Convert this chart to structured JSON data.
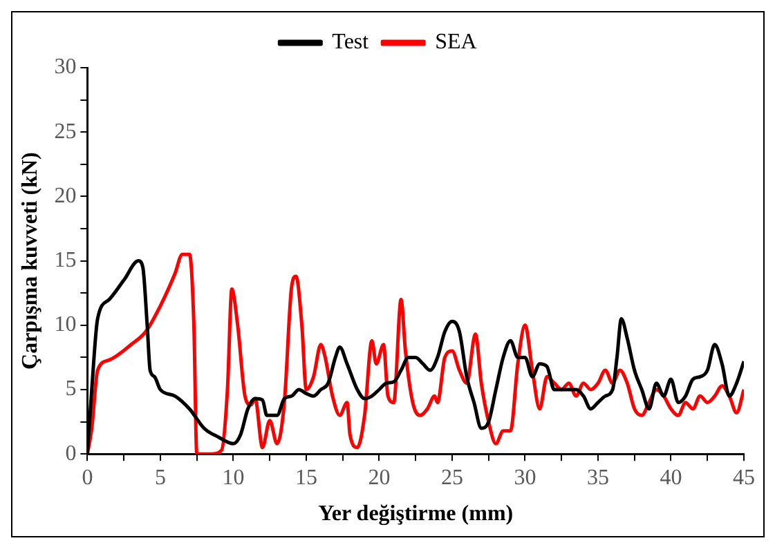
{
  "chart_data": {
    "type": "line",
    "xlabel": "Yer değiştirme (mm)",
    "ylabel": "Çarpışma kuvveti (kN)",
    "legend": "top",
    "grid": false,
    "marker": "none",
    "line_style": "solid",
    "xlim": [
      0,
      45
    ],
    "xticks": [
      0,
      {
        "value": 2.5,
        "label": null
      },
      5,
      {
        "value": 7.5,
        "label": null
      },
      10,
      {
        "value": 12.5,
        "label": null
      },
      15,
      {
        "value": 17.5,
        "label": null
      },
      20,
      {
        "value": 22.5,
        "label": null
      },
      25,
      {
        "value": 27.5,
        "label": null
      },
      30,
      {
        "value": 32.5,
        "label": null
      },
      35,
      {
        "value": 37.5,
        "label": null
      },
      40,
      {
        "value": 42.5,
        "label": null
      },
      45
    ],
    "ylim": [
      0,
      30
    ],
    "yticks": [
      0,
      {
        "value": 2.5,
        "label": null
      },
      5,
      {
        "value": 7.5,
        "label": null
      },
      10,
      {
        "value": 12.5,
        "label": null
      },
      15,
      {
        "value": 17.5,
        "label": null
      },
      20,
      {
        "value": 22.5,
        "label": null
      },
      25,
      {
        "value": 27.5,
        "label": null
      },
      30
    ],
    "series": [
      {
        "name": "Test",
        "color": "#000000",
        "x": [
          0,
          0.3,
          0.7,
          1.5,
          2.5,
          3.5,
          3.8,
          4.1,
          4.3,
          4.6,
          5,
          6,
          7,
          8,
          9,
          10,
          10.5,
          11,
          11.5,
          12,
          12.3,
          13,
          13.5,
          14,
          14.5,
          15,
          15.5,
          16,
          16.5,
          17,
          17.3,
          17.8,
          18.5,
          19,
          19.5,
          20,
          20.5,
          21,
          21.5,
          22,
          22.5,
          23,
          23.5,
          24,
          24.5,
          25,
          25.5,
          26,
          26.5,
          27,
          27.5,
          28,
          28.5,
          29,
          29.5,
          30,
          30.5,
          31,
          31.5,
          32,
          33,
          33.5,
          34,
          34.5,
          35,
          35.5,
          36,
          36.3,
          36.6,
          37,
          37.5,
          38,
          38.5,
          39,
          39.5,
          40,
          40.5,
          41,
          41.5,
          42,
          42.5,
          43,
          43.5,
          44,
          44.5,
          45
        ],
        "values": [
          0,
          5,
          10.5,
          12,
          13.5,
          15,
          14.5,
          10,
          6.5,
          6,
          5,
          4.5,
          3.5,
          2,
          1.3,
          0.8,
          1.5,
          3.5,
          4.3,
          4.2,
          3,
          3,
          4.3,
          4.5,
          5,
          4.7,
          4.5,
          5,
          5.5,
          7.5,
          8.3,
          7,
          5,
          4.3,
          4.5,
          5,
          5.5,
          5.6,
          6.5,
          7.5,
          7.5,
          7,
          6.5,
          7.5,
          9.5,
          10.3,
          9.5,
          6,
          4,
          2,
          2.5,
          5,
          7.5,
          8.8,
          7.5,
          7.5,
          6,
          7,
          6.8,
          5,
          5,
          5,
          4.5,
          3.5,
          4,
          4.5,
          5,
          7.5,
          10.5,
          9,
          6.5,
          5,
          3.5,
          5.5,
          4.5,
          5.8,
          4,
          4.5,
          5.8,
          6,
          6.5,
          8.5,
          7,
          4.5,
          5.5,
          7.2
        ]
      },
      {
        "name": "SEA",
        "color": "#ff0000",
        "x": [
          0,
          0.3,
          0.7,
          1.5,
          3,
          4,
          5,
          6,
          6.5,
          7,
          7.3,
          7.5,
          8.5,
          9.2,
          9.6,
          9.9,
          10.3,
          10.8,
          11.2,
          11.5,
          12,
          12.5,
          13,
          13.5,
          14,
          14.3,
          14.7,
          15,
          15.5,
          16,
          16.3,
          16.8,
          17.3,
          17.8,
          18,
          18.5,
          19,
          19.5,
          19.8,
          20.3,
          20.6,
          21,
          21.5,
          21.8,
          22.3,
          22.8,
          23.3,
          23.8,
          24,
          24.5,
          25,
          25.5,
          26,
          26.6,
          27,
          27.5,
          28,
          28.5,
          29,
          29.5,
          30,
          30.5,
          31,
          31.5,
          32,
          32.5,
          33,
          33.5,
          34,
          34.5,
          35,
          35.5,
          36,
          36.5,
          37,
          37.5,
          38,
          38.5,
          39,
          39.5,
          40,
          40.5,
          41,
          41.5,
          42,
          42.5,
          43,
          43.5,
          44,
          44.5,
          45
        ],
        "values": [
          0,
          2,
          6.5,
          7.3,
          8.5,
          9.5,
          11.5,
          14,
          15.5,
          15.5,
          10,
          0,
          0,
          0.3,
          5,
          12.8,
          10,
          4.5,
          3.8,
          4.3,
          0.5,
          2.6,
          0.8,
          4,
          13,
          13.8,
          10,
          5,
          6,
          8.5,
          7.5,
          4.5,
          3,
          4,
          1.5,
          0.5,
          3,
          8.8,
          7,
          8.5,
          4.5,
          4,
          12,
          8,
          4,
          3,
          3.5,
          4.5,
          4,
          7.5,
          8,
          6.5,
          5.5,
          9.3,
          5.5,
          2.5,
          0.8,
          1.8,
          1.8,
          7,
          10,
          6.5,
          3.5,
          6,
          5.5,
          5,
          5.5,
          4.5,
          5.5,
          5,
          5.5,
          6.5,
          5.5,
          6.5,
          5.5,
          3.5,
          3,
          4,
          5,
          4.5,
          3.5,
          3,
          4,
          3.5,
          4.5,
          4,
          4.5,
          5.3,
          4.5,
          3.2,
          5
        ]
      }
    ]
  }
}
